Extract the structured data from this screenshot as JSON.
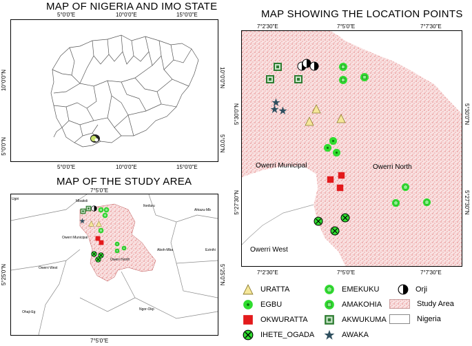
{
  "maps": {
    "nigeria": {
      "title": "MAP OF NIGERIA AND IMO STATE",
      "x_ticks_top": [
        "5°0'0\"E",
        "10°0'0\"E",
        "15°0'0\"E"
      ],
      "x_ticks_bottom": [
        "5°0'0\"E",
        "10°0'0\"E",
        "15°0'0\"E"
      ],
      "y_ticks_left": [
        "10°0'0\"N",
        "5°0'0\"N"
      ],
      "y_ticks_right": [
        "10°0'0\"N",
        "5°0'0\"N"
      ]
    },
    "study_area": {
      "title": "MAP OF THE STUDY AREA",
      "x_tick_top": "7°5'0\"E",
      "x_tick_bottom": "7°5'0\"E",
      "y_tick_left": "5°25'0\"N",
      "y_tick_right": "5°25'0\"N",
      "place_labels": {
        "ugiri": "Ugiri",
        "mbaitoli": "Mbaitoli",
        "ikeduru": "Ikeduru",
        "ahiazu_mbaise": "Ahiazu-Mb",
        "owerri_municipal": "Owerri Municipal",
        "owerri_north": "Owerri North",
        "owerri_west": "Owerri West",
        "aboh_mbaise": "Aboh-Mba",
        "ezinihitte": "Ezinihi",
        "ohaji_egbema": "Ohaji-Eg",
        "ngor_okpala": "Ngor-Okp"
      }
    },
    "locations": {
      "title": "MAP SHOWING THE LOCATION POINTS",
      "x_ticks_top": [
        "7°2'30\"E",
        "7°5'0\"E",
        "7°7'30\"E"
      ],
      "x_ticks_bottom": [
        "7°2'30\"E",
        "7°5'0\"E",
        "7°7'30\"E"
      ],
      "y_ticks_left": [
        "5°30'0\"N",
        "5°27'30\"N"
      ],
      "y_ticks_right": [
        "5°30'0\"N",
        "5°27'30\"N"
      ],
      "place_labels": {
        "owerri_municipal": "Owerri Municipal",
        "owerri_north": "Owerri North",
        "owerri_west": "Owerri West"
      }
    }
  },
  "legend": [
    {
      "label": "URATTA",
      "symbol": "triangle",
      "color": "#f5e79a"
    },
    {
      "label": "EMEKUKU",
      "symbol": "pentagon",
      "color": "#2fdc2f"
    },
    {
      "label": "Orji",
      "symbol": "half-circle",
      "color": "#000000"
    },
    {
      "label": "EGBU",
      "symbol": "dot-circle",
      "color": "#2fdc2f"
    },
    {
      "label": "AMAKOHIA",
      "symbol": "dot-square",
      "color": "#2fdc2f"
    },
    {
      "label": "Study Area",
      "symbol": "stipple",
      "color": "#f2c9c9"
    },
    {
      "label": "OKWURATTA",
      "symbol": "square",
      "color": "#e31a1c"
    },
    {
      "label": "AKWUKUMA",
      "symbol": "nested-square",
      "color": "#2e7d32"
    },
    {
      "label": "Nigeria",
      "symbol": "box",
      "color": "#ffffff"
    },
    {
      "label": "IHETE_OGADA",
      "symbol": "x-circle",
      "color": "#2fdc2f"
    },
    {
      "label": "AWAKA",
      "symbol": "star",
      "color": "#2f4f5f"
    }
  ],
  "colors": {
    "study_area_fill": "#f7d6d6",
    "stipple": "#d43a3a",
    "green": "#2fdc2f",
    "red": "#e31a1c",
    "star": "#2f4f5f",
    "triangle": "#f5e79a"
  }
}
